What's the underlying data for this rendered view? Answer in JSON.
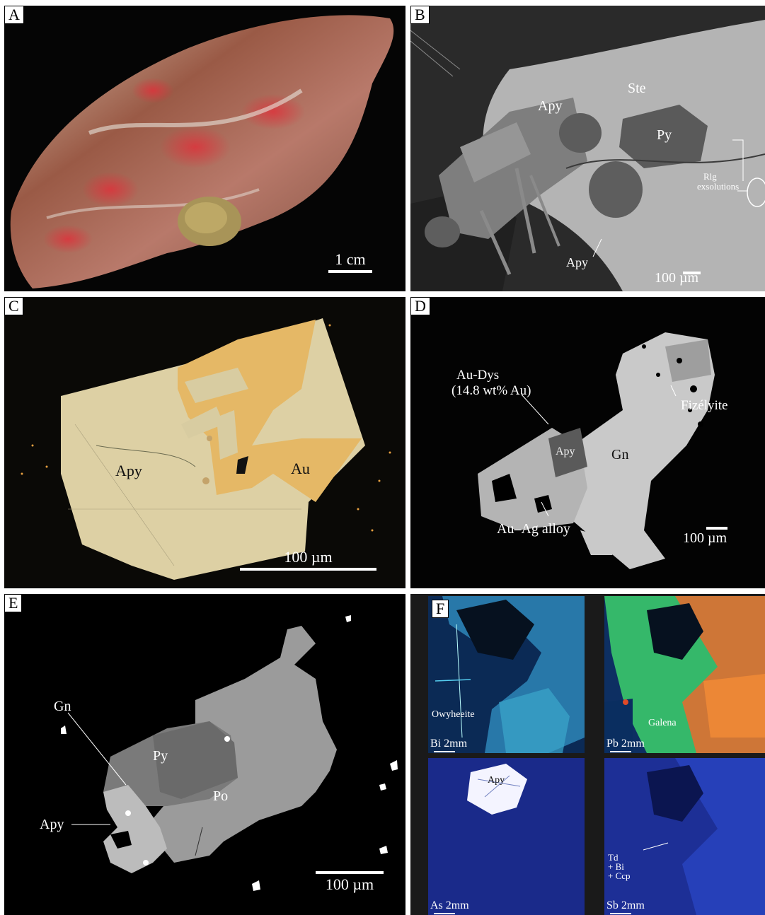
{
  "panels": {
    "a": {
      "label": "A",
      "scale": "1 cm"
    },
    "b": {
      "label": "B",
      "minerals": [
        "Ste",
        "Apy",
        "Py",
        "Apy"
      ],
      "note_line1": "Rlg",
      "note_line2": "exsolutions",
      "scale": "100 µm"
    },
    "c": {
      "label": "C",
      "minerals": [
        "Apy",
        "Au"
      ],
      "scale": "100 µm"
    },
    "d": {
      "label": "D",
      "au_dys_line1": "Au-Dys",
      "au_dys_line2": "(14.8 wt% Au)",
      "fizelyite": "Fizélyite",
      "apy": "Apy",
      "gn": "Gn",
      "au_ag": "Au–Ag alloy",
      "scale": "100 µm"
    },
    "e": {
      "label": "E",
      "minerals": [
        "Gn",
        "Py",
        "Po",
        "Apy"
      ],
      "scale": "100 µm"
    },
    "f": {
      "label": "F",
      "maps": [
        {
          "element": "Bi 2mm",
          "annotation": "Owyheeite"
        },
        {
          "element": "Pb 2mm",
          "annotation": "Galena"
        },
        {
          "element": "As 2mm",
          "annotation": "Apy"
        },
        {
          "element": "Sb 2mm",
          "annotation_lines": [
            "Td",
            "+ Bi",
            "+ Ccp"
          ]
        }
      ]
    }
  }
}
